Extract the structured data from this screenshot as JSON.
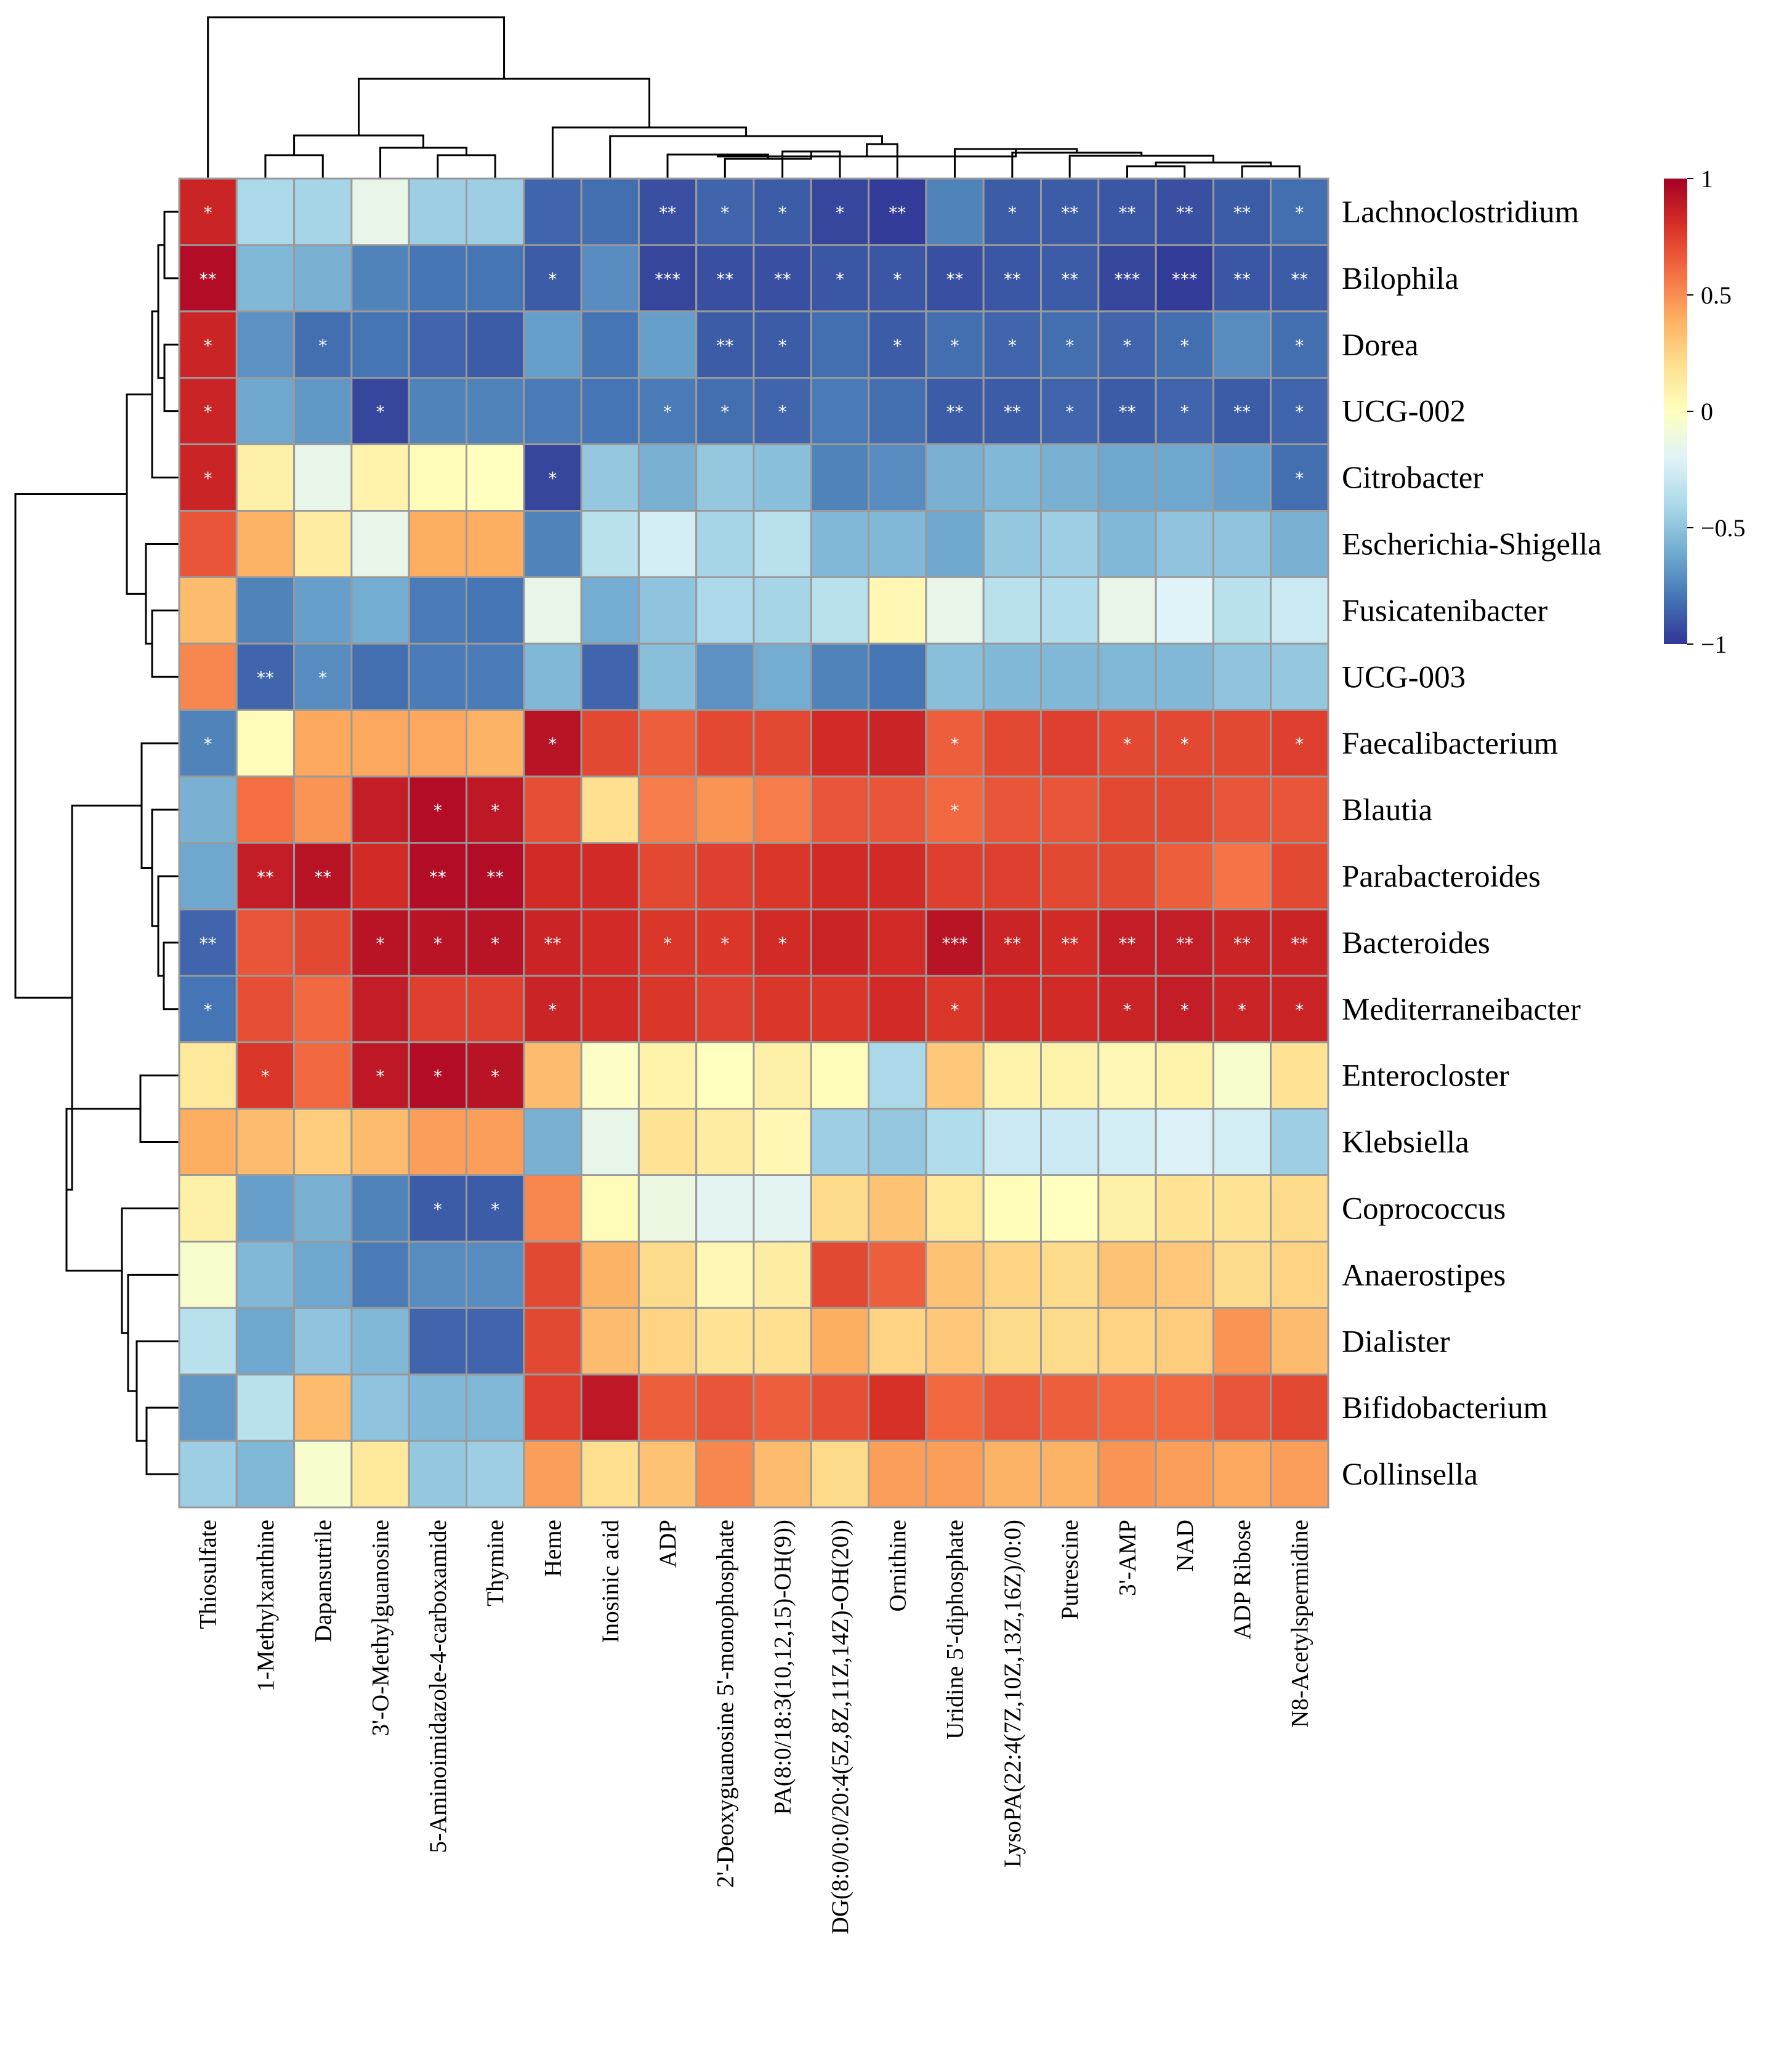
{
  "chart_data": {
    "type": "heatmap",
    "title": "",
    "rows": [
      "Lachnoclostridium",
      "Bilophila",
      "Dorea",
      "UCG-002",
      "Citrobacter",
      "Escherichia-Shigella",
      "Fusicatenibacter",
      "UCG-003",
      "Faecalibacterium",
      "Blautia",
      "Parabacteroides",
      "Bacteroides",
      "Mediterraneibacter",
      "Enterocloster",
      "Klebsiella",
      "Coprococcus",
      "Anaerostipes",
      "Dialister",
      "Bifidobacterium",
      "Collinsella"
    ],
    "columns": [
      "Thiosulfate",
      "1-Methylxanthine",
      "Dapansutrile",
      "3'-O-Methylguanosine",
      "5-Aminoimidazole-4-carboxamide",
      "Thymine",
      "Heme",
      "Inosinic acid",
      "ADP",
      "2'-Deoxyguanosine 5'-monophosphate",
      "PA(8:0/18:3(10,12,15)-OH(9))",
      "DG(8:0/0:0/20:4(5Z,8Z,11Z,14Z)-OH(20))",
      "Ornithine",
      "Uridine 5'-diphosphate",
      "LysoPA(22:4(7Z,10Z,13Z,16Z)/0:0)",
      "Putrescine",
      "3'-AMP",
      "NAD",
      "ADP Ribose",
      "N8-Acetylspermidine"
    ],
    "values": [
      [
        0.85,
        -0.4,
        -0.42,
        -0.15,
        -0.45,
        -0.45,
        -0.85,
        -0.82,
        -0.92,
        -0.85,
        -0.88,
        -0.95,
        -0.98,
        -0.75,
        -0.88,
        -0.88,
        -0.9,
        -0.92,
        -0.88,
        -0.82
      ],
      [
        0.95,
        -0.55,
        -0.58,
        -0.75,
        -0.8,
        -0.8,
        -0.88,
        -0.72,
        -0.95,
        -0.92,
        -0.92,
        -0.9,
        -0.9,
        -0.92,
        -0.9,
        -0.88,
        -0.95,
        -0.98,
        -0.9,
        -0.88
      ],
      [
        0.85,
        -0.7,
        -0.82,
        -0.8,
        -0.85,
        -0.88,
        -0.65,
        -0.8,
        -0.65,
        -0.88,
        -0.88,
        -0.82,
        -0.88,
        -0.82,
        -0.85,
        -0.82,
        -0.85,
        -0.82,
        -0.72,
        -0.82
      ],
      [
        0.85,
        -0.62,
        -0.68,
        -0.95,
        -0.75,
        -0.75,
        -0.78,
        -0.8,
        -0.78,
        -0.82,
        -0.85,
        -0.78,
        -0.82,
        -0.88,
        -0.88,
        -0.85,
        -0.88,
        -0.85,
        -0.88,
        -0.85
      ],
      [
        0.85,
        0.1,
        -0.15,
        0.08,
        0.02,
        0.0,
        -0.95,
        -0.48,
        -0.58,
        -0.48,
        -0.52,
        -0.75,
        -0.72,
        -0.58,
        -0.55,
        -0.58,
        -0.62,
        -0.62,
        -0.65,
        -0.82
      ],
      [
        0.68,
        0.38,
        0.12,
        -0.15,
        0.4,
        0.4,
        -0.75,
        -0.35,
        -0.25,
        -0.42,
        -0.35,
        -0.55,
        -0.55,
        -0.62,
        -0.48,
        -0.45,
        -0.55,
        -0.5,
        -0.5,
        -0.58
      ],
      [
        0.35,
        -0.75,
        -0.65,
        -0.6,
        -0.78,
        -0.8,
        -0.15,
        -0.6,
        -0.5,
        -0.4,
        -0.42,
        -0.35,
        0.05,
        -0.15,
        -0.35,
        -0.38,
        -0.15,
        -0.2,
        -0.35,
        -0.28
      ],
      [
        0.52,
        -0.85,
        -0.72,
        -0.82,
        -0.78,
        -0.78,
        -0.55,
        -0.85,
        -0.52,
        -0.7,
        -0.6,
        -0.75,
        -0.8,
        -0.52,
        -0.55,
        -0.55,
        -0.55,
        -0.55,
        -0.5,
        -0.48
      ],
      [
        -0.75,
        0.02,
        0.42,
        0.42,
        0.42,
        0.38,
        0.92,
        0.72,
        0.65,
        0.72,
        0.72,
        0.82,
        0.85,
        0.65,
        0.72,
        0.75,
        0.72,
        0.72,
        0.72,
        0.75
      ],
      [
        -0.58,
        0.6,
        0.48,
        0.88,
        0.95,
        0.9,
        0.7,
        0.2,
        0.55,
        0.48,
        0.55,
        0.68,
        0.68,
        0.62,
        0.68,
        0.68,
        0.72,
        0.72,
        0.68,
        0.68
      ],
      [
        -0.62,
        0.88,
        0.92,
        0.82,
        0.95,
        0.95,
        0.82,
        0.82,
        0.72,
        0.75,
        0.78,
        0.82,
        0.82,
        0.75,
        0.75,
        0.72,
        0.72,
        0.65,
        0.58,
        0.72
      ],
      [
        -0.85,
        0.68,
        0.72,
        0.92,
        0.92,
        0.92,
        0.85,
        0.82,
        0.78,
        0.78,
        0.82,
        0.85,
        0.82,
        0.92,
        0.85,
        0.82,
        0.88,
        0.88,
        0.85,
        0.85
      ],
      [
        -0.8,
        0.7,
        0.62,
        0.88,
        0.75,
        0.75,
        0.85,
        0.82,
        0.78,
        0.75,
        0.78,
        0.78,
        0.82,
        0.78,
        0.82,
        0.82,
        0.85,
        0.88,
        0.85,
        0.85
      ],
      [
        0.15,
        0.78,
        0.62,
        0.9,
        0.95,
        0.92,
        0.35,
        -0.02,
        0.08,
        0.0,
        0.1,
        0.02,
        -0.4,
        0.3,
        0.08,
        0.08,
        0.05,
        0.08,
        -0.05,
        0.18
      ],
      [
        0.4,
        0.35,
        0.28,
        0.35,
        0.45,
        0.45,
        -0.58,
        -0.15,
        0.18,
        0.12,
        0.05,
        -0.45,
        -0.48,
        -0.38,
        -0.28,
        -0.28,
        -0.25,
        -0.22,
        -0.25,
        -0.45
      ],
      [
        0.1,
        -0.65,
        -0.58,
        -0.75,
        -0.88,
        -0.88,
        0.52,
        0.02,
        -0.12,
        -0.18,
        -0.18,
        0.22,
        0.32,
        0.15,
        0.02,
        0.0,
        0.1,
        0.18,
        0.18,
        0.22
      ],
      [
        -0.05,
        -0.55,
        -0.62,
        -0.78,
        -0.72,
        -0.72,
        0.72,
        0.38,
        0.22,
        0.05,
        0.12,
        0.72,
        0.65,
        0.32,
        0.25,
        0.22,
        0.32,
        0.3,
        0.22,
        0.25
      ],
      [
        -0.35,
        -0.62,
        -0.5,
        -0.55,
        -0.85,
        -0.85,
        0.72,
        0.35,
        0.25,
        0.18,
        0.2,
        0.4,
        0.25,
        0.3,
        0.22,
        0.22,
        0.25,
        0.28,
        0.48,
        0.35
      ],
      [
        -0.68,
        -0.35,
        0.35,
        -0.5,
        -0.55,
        -0.55,
        0.75,
        0.9,
        0.65,
        0.68,
        0.65,
        0.7,
        0.8,
        0.62,
        0.68,
        0.65,
        0.62,
        0.62,
        0.68,
        0.72
      ],
      [
        -0.45,
        -0.55,
        -0.05,
        0.15,
        -0.48,
        -0.45,
        0.45,
        0.2,
        0.32,
        0.52,
        0.35,
        0.22,
        0.45,
        0.45,
        0.38,
        0.38,
        0.48,
        0.45,
        0.42,
        0.45
      ]
    ],
    "significance": [
      [
        "*",
        "",
        "",
        "",
        "",
        "",
        "",
        "",
        "**",
        "*",
        "*",
        "*",
        "**",
        "",
        "*",
        "**",
        "**",
        "**",
        "**",
        "*"
      ],
      [
        "**",
        "",
        "",
        "",
        "",
        "",
        "*",
        "",
        "***",
        "**",
        "**",
        "*",
        "*",
        "**",
        "**",
        "**",
        "***",
        "***",
        "**",
        "**"
      ],
      [
        "*",
        "",
        "*",
        "",
        "",
        "",
        "",
        "",
        "",
        "**",
        "*",
        "",
        "*",
        "*",
        "*",
        "*",
        "*",
        "*",
        "",
        "*"
      ],
      [
        "*",
        "",
        "",
        "*",
        "",
        "",
        "",
        "",
        "*",
        "*",
        "*",
        "",
        "",
        "**",
        "**",
        "*",
        "**",
        "*",
        "**",
        "*"
      ],
      [
        "*",
        "",
        "",
        "",
        "",
        "",
        "*",
        "",
        "",
        "",
        "",
        "",
        "",
        "",
        "",
        "",
        "",
        "",
        "",
        "*"
      ],
      [
        "",
        "",
        "",
        "",
        "",
        "",
        "",
        "",
        "",
        "",
        "",
        "",
        "",
        "",
        "",
        "",
        "",
        "",
        "",
        ""
      ],
      [
        "",
        "",
        "",
        "",
        "",
        "",
        "",
        "",
        "",
        "",
        "",
        "",
        "",
        "",
        "",
        "",
        "",
        "",
        "",
        ""
      ],
      [
        "",
        "**",
        "*",
        "",
        "",
        "",
        "",
        "",
        "",
        "",
        "",
        "",
        "",
        "",
        "",
        "",
        "",
        "",
        "",
        ""
      ],
      [
        "*",
        "",
        "",
        "",
        "",
        "",
        "*",
        "",
        "",
        "",
        "",
        "",
        "",
        "*",
        "",
        "",
        "*",
        "*",
        "",
        "*"
      ],
      [
        "",
        "",
        "",
        "",
        "*",
        "*",
        "",
        "",
        "",
        "",
        "",
        "",
        "",
        "*",
        "",
        "",
        "",
        "",
        "",
        ""
      ],
      [
        "",
        "**",
        "**",
        "",
        "**",
        "**",
        "",
        "",
        "",
        "",
        "",
        "",
        "",
        "",
        "",
        "",
        "",
        "",
        "",
        ""
      ],
      [
        "**",
        "",
        "",
        "*",
        "*",
        "*",
        "**",
        "",
        "*",
        "*",
        "*",
        "",
        "",
        "***",
        "**",
        "**",
        "**",
        "**",
        "**",
        "**"
      ],
      [
        "*",
        "",
        "",
        "",
        "",
        "",
        "*",
        "",
        "",
        "",
        "",
        "",
        "",
        "*",
        "",
        "",
        "*",
        "*",
        "*",
        "*"
      ],
      [
        "",
        "*",
        "",
        "*",
        "*",
        "*",
        "",
        "",
        "",
        "",
        "",
        "",
        "",
        "",
        "",
        "",
        "",
        "",
        "",
        ""
      ],
      [
        "",
        "",
        "",
        "",
        "",
        "",
        "",
        "",
        "",
        "",
        "",
        "",
        "",
        "",
        "",
        "",
        "",
        "",
        "",
        ""
      ],
      [
        "",
        "",
        "",
        "",
        "*",
        "*",
        "",
        "",
        "",
        "",
        "",
        "",
        "",
        "",
        "",
        "",
        "",
        "",
        "",
        ""
      ],
      [
        "",
        "",
        "",
        "",
        "",
        "",
        "",
        "",
        "",
        "",
        "",
        "",
        "",
        "",
        "",
        "",
        "",
        "",
        "",
        ""
      ],
      [
        "",
        "",
        "",
        "",
        "",
        "",
        "",
        "",
        "",
        "",
        "",
        "",
        "",
        "",
        "",
        "",
        "",
        "",
        "",
        ""
      ],
      [
        "",
        "",
        "",
        "",
        "",
        "",
        "",
        "",
        "",
        "",
        "",
        "",
        "",
        "",
        "",
        "",
        "",
        "",
        "",
        ""
      ],
      [
        "",
        "",
        "",
        "",
        "",
        "",
        "",
        "",
        "",
        "",
        "",
        "",
        "",
        "",
        "",
        "",
        "",
        "",
        "",
        ""
      ]
    ],
    "color_scale": {
      "range": [
        -1,
        1
      ],
      "ticks": [
        "1",
        "0.5",
        "0",
        "−0.5",
        "−1"
      ],
      "colors": [
        "#313695",
        "#4575b4",
        "#74add1",
        "#abd9e9",
        "#e0f3f8",
        "#ffffbf",
        "#fee090",
        "#fdae61",
        "#f46d43",
        "#d73027",
        "#a50026"
      ]
    },
    "legend": "top-right",
    "dendrograms": [
      "rows",
      "columns"
    ]
  }
}
